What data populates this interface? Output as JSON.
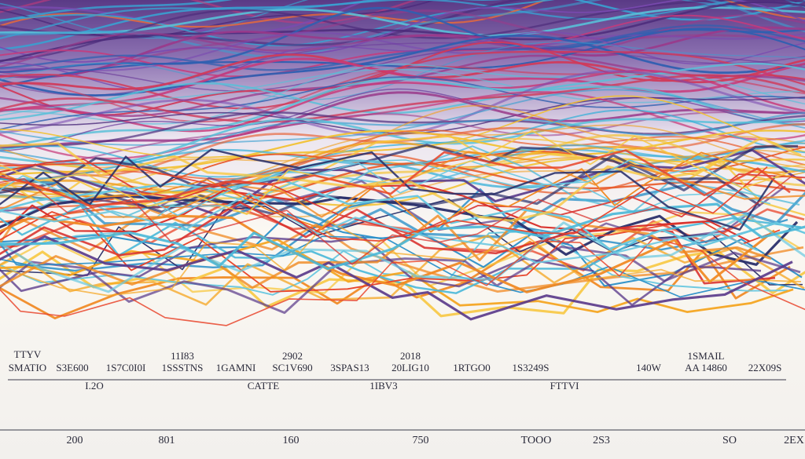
{
  "labels_top": [
    "TTYV",
    "11I83",
    "2902",
    "2018",
    "1SMAIL"
  ],
  "labels_row1": [
    "SMATIO",
    "S3E600",
    "1S7C0I0I",
    "1SSSTNS",
    "1GAMNI",
    "SC1V690",
    "3SPAS13",
    "20LIG10",
    "1RTGO0",
    "1S3249S",
    "140W",
    "AA 14860",
    "22X09S"
  ],
  "labels_row2": [
    "I.2O",
    "CATTE",
    "1IBV3",
    "FTTVI"
  ],
  "labels_bottom": [
    "200",
    "801",
    "160",
    "750",
    "TOOO",
    "2S3",
    "SO",
    "2EX"
  ]
}
